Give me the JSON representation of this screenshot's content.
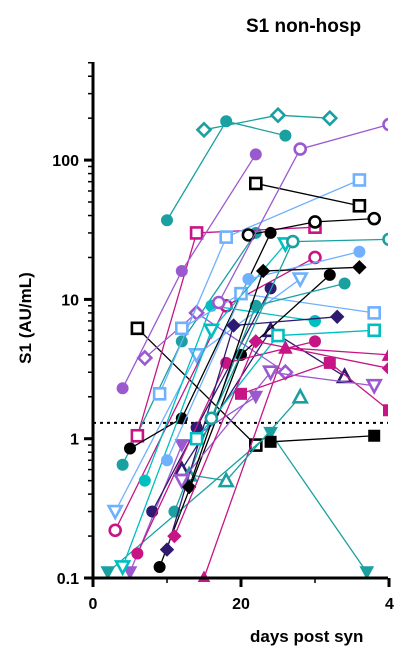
{
  "chart_data": {
    "type": "line",
    "title": "S1 non-hosp",
    "xlabel": "days post syn",
    "ylabel": "S1 (AU/mL)",
    "x_ticks": [
      "0",
      "20",
      "4"
    ],
    "y_ticks": [
      "0.1",
      "1",
      "10",
      "100"
    ],
    "xlim": [
      0,
      40
    ],
    "ylim": [
      0.1,
      500
    ],
    "y_scale": "log",
    "grid": false,
    "threshold": 1.3,
    "colors": [
      "#000000",
      "#1aa0a0",
      "#00bfc0",
      "#9b59d0",
      "#c71585",
      "#6fb0ff",
      "#2e1a6e"
    ],
    "series": [
      {
        "color": "#000000",
        "marker": "square-open",
        "values": [
          [
            6,
            6.2
          ],
          [
            22,
            0.9
          ]
        ]
      },
      {
        "color": "#1aa0a0",
        "marker": "circle",
        "values": [
          [
            10,
            37
          ],
          [
            18,
            190
          ],
          [
            26,
            150
          ]
        ]
      },
      {
        "color": "#1aa0a0",
        "marker": "diamond-open",
        "values": [
          [
            15,
            165
          ],
          [
            25,
            210
          ],
          [
            32,
            200
          ]
        ]
      },
      {
        "color": "#1aa0a0",
        "marker": "circle",
        "values": [
          [
            4,
            0.65
          ],
          [
            12,
            5
          ],
          [
            22,
            30
          ]
        ]
      },
      {
        "color": "#c71585",
        "marker": "square-open",
        "values": [
          [
            6,
            1.05
          ],
          [
            14,
            30
          ],
          [
            30,
            33
          ]
        ]
      },
      {
        "color": "#c71585",
        "marker": "circle-open",
        "values": [
          [
            3,
            0.22
          ],
          [
            18,
            9
          ],
          [
            30,
            20
          ]
        ]
      },
      {
        "color": "#9b59d0",
        "marker": "circle",
        "values": [
          [
            4,
            2.3
          ],
          [
            12,
            16
          ],
          [
            22,
            110
          ]
        ]
      },
      {
        "color": "#9b59d0",
        "marker": "diamond-open",
        "values": [
          [
            7,
            3.8
          ],
          [
            14,
            8
          ],
          [
            26,
            3
          ]
        ]
      },
      {
        "color": "#6fb0ff",
        "marker": "square-open",
        "values": [
          [
            9,
            2.1
          ],
          [
            18,
            28
          ],
          [
            36,
            72
          ]
        ]
      },
      {
        "color": "#6fb0ff",
        "marker": "triangle-down-open",
        "values": [
          [
            3,
            0.3
          ],
          [
            14,
            4
          ],
          [
            28,
            14
          ]
        ]
      },
      {
        "color": "#000000",
        "marker": "circle",
        "values": [
          [
            5,
            0.85
          ],
          [
            12,
            1.4
          ],
          [
            24,
            30
          ]
        ]
      },
      {
        "color": "#000000",
        "marker": "square-open",
        "values": [
          [
            22,
            68
          ],
          [
            36,
            47
          ]
        ]
      },
      {
        "color": "#000000",
        "marker": "circle-open",
        "values": [
          [
            21,
            29
          ],
          [
            30,
            36
          ],
          [
            38,
            38
          ]
        ]
      },
      {
        "color": "#2e1a6e",
        "marker": "triangle-open",
        "values": [
          [
            12,
            0.6
          ],
          [
            24,
            6
          ],
          [
            34,
            2.8
          ]
        ]
      },
      {
        "color": "#1aa0a0",
        "marker": "triangle-down",
        "values": [
          [
            2,
            0.11
          ],
          [
            24,
            1.1
          ],
          [
            37,
            0.11
          ]
        ]
      },
      {
        "color": "#c71585",
        "marker": "triangle",
        "values": [
          [
            15,
            0.1
          ],
          [
            26,
            4.5
          ],
          [
            40,
            4
          ]
        ]
      },
      {
        "color": "#c71585",
        "marker": "square",
        "values": [
          [
            20,
            2.1
          ],
          [
            32,
            3.5
          ],
          [
            40,
            1.6
          ]
        ]
      },
      {
        "color": "#000000",
        "marker": "square",
        "values": [
          [
            24,
            0.95
          ],
          [
            38,
            1.05
          ]
        ]
      },
      {
        "color": "#00bfc0",
        "marker": "circle",
        "values": [
          [
            7,
            0.5
          ],
          [
            16,
            9
          ],
          [
            30,
            7
          ]
        ]
      },
      {
        "color": "#1aa0a0",
        "marker": "triangle-open",
        "values": [
          [
            13,
            0.55
          ],
          [
            18,
            0.5
          ],
          [
            28,
            2
          ]
        ]
      },
      {
        "color": "#9b59d0",
        "marker": "triangle-down",
        "values": [
          [
            5,
            0.11
          ],
          [
            12,
            0.9
          ],
          [
            22,
            2
          ]
        ]
      },
      {
        "color": "#6fb0ff",
        "marker": "square-open",
        "values": [
          [
            12,
            6.2
          ],
          [
            20,
            11
          ],
          [
            38,
            8
          ]
        ]
      },
      {
        "color": "#2e1a6e",
        "marker": "circle",
        "values": [
          [
            8,
            0.3
          ],
          [
            14,
            1.2
          ],
          [
            24,
            12
          ]
        ]
      },
      {
        "color": "#00bfc0",
        "marker": "triangle-down-open",
        "values": [
          [
            4,
            0.12
          ],
          [
            16,
            6
          ],
          [
            26,
            25
          ]
        ]
      },
      {
        "color": "#9b59d0",
        "marker": "circle-open",
        "values": [
          [
            17,
            9.5
          ],
          [
            28,
            120
          ],
          [
            40,
            180
          ]
        ]
      },
      {
        "color": "#000000",
        "marker": "circle",
        "values": [
          [
            9,
            0.12
          ],
          [
            20,
            4
          ],
          [
            32,
            15
          ]
        ]
      },
      {
        "color": "#1aa0a0",
        "marker": "circle",
        "values": [
          [
            11,
            0.3
          ],
          [
            22,
            9
          ],
          [
            34,
            13
          ]
        ]
      },
      {
        "color": "#c71585",
        "marker": "circle",
        "values": [
          [
            6,
            0.15
          ],
          [
            18,
            3.5
          ],
          [
            30,
            5
          ]
        ]
      },
      {
        "color": "#6fb0ff",
        "marker": "circle",
        "values": [
          [
            10,
            0.7
          ],
          [
            21,
            14
          ],
          [
            36,
            22
          ]
        ]
      },
      {
        "color": "#2e1a6e",
        "marker": "diamond",
        "values": [
          [
            10,
            0.16
          ],
          [
            19,
            6.5
          ],
          [
            33,
            7.5
          ]
        ]
      },
      {
        "color": "#9b59d0",
        "marker": "triangle-down-open",
        "values": [
          [
            12,
            0.5
          ],
          [
            24,
            3
          ],
          [
            38,
            2.4
          ]
        ]
      },
      {
        "color": "#00bfc0",
        "marker": "square-open",
        "values": [
          [
            14,
            1.0
          ],
          [
            25,
            5.5
          ],
          [
            38,
            6
          ]
        ]
      },
      {
        "color": "#000000",
        "marker": "diamond",
        "values": [
          [
            13,
            0.45
          ],
          [
            23,
            16
          ],
          [
            36,
            17
          ]
        ]
      },
      {
        "color": "#1aa0a0",
        "marker": "circle-open",
        "values": [
          [
            16,
            1.4
          ],
          [
            27,
            26
          ],
          [
            40,
            27
          ]
        ]
      },
      {
        "color": "#c71585",
        "marker": "diamond",
        "values": [
          [
            11,
            0.2
          ],
          [
            22,
            5
          ],
          [
            40,
            3.2
          ]
        ]
      }
    ]
  }
}
